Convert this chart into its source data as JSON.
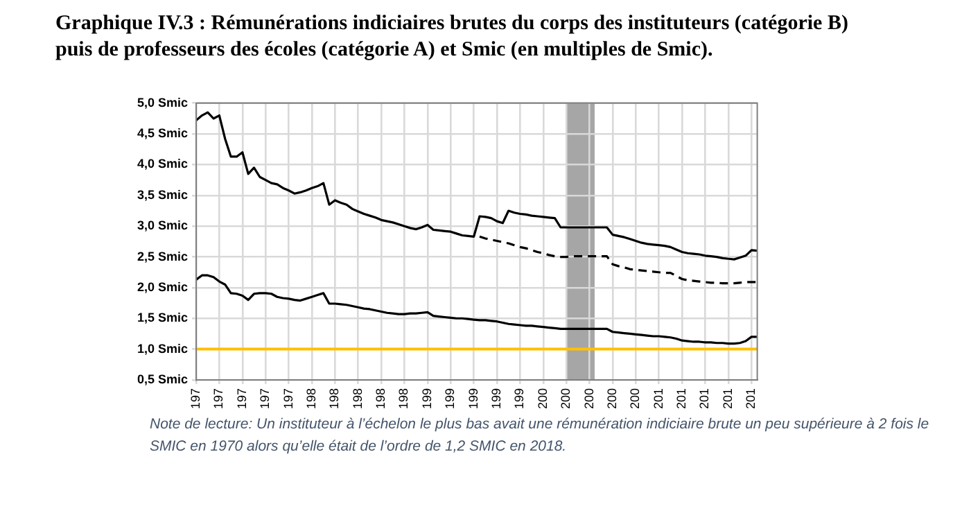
{
  "chart_data": {
    "type": "line",
    "title": "Graphique IV.3 : Rémunérations indiciaires brutes du corps des instituteurs (catégorie B) puis de professeurs des écoles (catégorie A) et Smic (en multiples de Smic).",
    "annotations": [
      "Note de lecture: Un instituteur à l’échelon le plus bas  avait une rémunération indiciaire brute un peu supérieure à 2 fois le SMIC en 1970 alors qu’elle était de l’ordre de 1,2 SMIC en 2018."
    ],
    "categories": [
      "197",
      null,
      null,
      null,
      "197",
      null,
      null,
      null,
      "197",
      null,
      null,
      null,
      "197",
      null,
      null,
      null,
      "197",
      null,
      null,
      null,
      "198",
      null,
      null,
      null,
      "198",
      null,
      null,
      null,
      "198",
      null,
      null,
      null,
      "198",
      null,
      null,
      null,
      "198",
      null,
      null,
      null,
      "199",
      null,
      null,
      null,
      "199",
      null,
      null,
      null,
      "199",
      null,
      null,
      null,
      "199",
      null,
      null,
      null,
      "199",
      null,
      null,
      null,
      "200",
      null,
      null,
      null,
      "200",
      null,
      null,
      null,
      "200",
      null,
      null,
      null,
      "200",
      null,
      null,
      null,
      "200",
      null,
      null,
      null,
      "201",
      null,
      null,
      null,
      "201",
      null,
      null,
      null,
      "201",
      null,
      null,
      null,
      "201",
      null,
      null,
      null,
      "201",
      null
    ],
    "ylim": [
      0.5,
      5.0
    ],
    "yticks": [
      {
        "value": 0.5,
        "label": "0,5 Smic"
      },
      {
        "value": 1.0,
        "label": "1,0 Smic"
      },
      {
        "value": 1.5,
        "label": "1,5 Smic"
      },
      {
        "value": 2.0,
        "label": "2,0 Smic"
      },
      {
        "value": 2.5,
        "label": "2,5 Smic"
      },
      {
        "value": 3.0,
        "label": "3,0 Smic"
      },
      {
        "value": 3.5,
        "label": "3,5 Smic"
      },
      {
        "value": 4.0,
        "label": "4,0 Smic"
      },
      {
        "value": 4.5,
        "label": "4,5 Smic"
      },
      {
        "value": 5.0,
        "label": "5,0 Smic"
      }
    ],
    "grid": true,
    "marker": "none",
    "series": [
      {
        "color": "#000000",
        "line_style": "solid",
        "values": [
          4.72,
          4.8,
          4.85,
          4.75,
          4.8,
          4.42,
          4.13,
          4.13,
          4.2,
          3.85,
          3.95,
          3.8,
          3.75,
          3.7,
          3.68,
          3.62,
          3.58,
          3.53,
          3.55,
          3.58,
          3.62,
          3.65,
          3.7,
          3.35,
          3.42,
          3.38,
          3.35,
          3.28,
          3.24,
          3.2,
          3.17,
          3.14,
          3.1,
          3.08,
          3.06,
          3.03,
          3.0,
          2.97,
          2.95,
          2.98,
          3.02,
          2.94,
          2.93,
          2.92,
          2.91,
          2.88,
          2.85,
          2.84,
          2.83,
          3.16,
          3.15,
          3.13,
          3.08,
          3.05,
          3.25,
          3.22,
          3.2,
          3.19,
          3.17,
          3.16,
          3.15,
          3.14,
          3.13,
          2.98,
          2.98,
          2.98,
          2.98,
          2.98,
          2.98,
          2.98,
          2.98,
          2.98,
          2.86,
          2.84,
          2.82,
          2.79,
          2.76,
          2.73,
          2.71,
          2.7,
          2.69,
          2.68,
          2.66,
          2.62,
          2.58,
          2.56,
          2.55,
          2.54,
          2.52,
          2.51,
          2.5,
          2.48,
          2.47,
          2.46,
          2.49,
          2.52,
          2.61,
          2.6
        ]
      },
      {
        "color": "#000000",
        "line_style": "dashed",
        "values": [
          null,
          null,
          null,
          null,
          null,
          null,
          null,
          null,
          null,
          null,
          null,
          null,
          null,
          null,
          null,
          null,
          null,
          null,
          null,
          null,
          null,
          null,
          null,
          null,
          null,
          null,
          null,
          null,
          null,
          null,
          null,
          null,
          null,
          null,
          null,
          null,
          null,
          null,
          null,
          null,
          null,
          null,
          null,
          null,
          null,
          null,
          null,
          null,
          null,
          2.83,
          2.8,
          2.78,
          2.76,
          2.74,
          2.72,
          2.69,
          2.66,
          2.64,
          2.61,
          2.58,
          2.56,
          2.53,
          2.51,
          2.5,
          2.5,
          2.51,
          2.51,
          2.51,
          2.51,
          2.51,
          2.51,
          2.51,
          2.38,
          2.35,
          2.33,
          2.3,
          2.29,
          2.28,
          2.27,
          2.26,
          2.25,
          2.24,
          2.24,
          2.19,
          2.14,
          2.12,
          2.11,
          2.1,
          2.09,
          2.08,
          2.08,
          2.07,
          2.07,
          2.07,
          2.08,
          2.09,
          2.09,
          2.09
        ]
      },
      {
        "color": "#000000",
        "line_style": "solid",
        "values": [
          2.13,
          2.2,
          2.2,
          2.17,
          2.1,
          2.05,
          1.91,
          1.9,
          1.87,
          1.8,
          1.9,
          1.91,
          1.91,
          1.9,
          1.85,
          1.83,
          1.82,
          1.8,
          1.79,
          1.82,
          1.85,
          1.88,
          1.91,
          1.74,
          1.74,
          1.73,
          1.72,
          1.7,
          1.68,
          1.66,
          1.65,
          1.63,
          1.61,
          1.59,
          1.58,
          1.57,
          1.57,
          1.58,
          1.58,
          1.59,
          1.6,
          1.54,
          1.53,
          1.52,
          1.51,
          1.5,
          1.5,
          1.49,
          1.48,
          1.47,
          1.47,
          1.46,
          1.45,
          1.43,
          1.41,
          1.4,
          1.39,
          1.38,
          1.38,
          1.37,
          1.36,
          1.35,
          1.34,
          1.33,
          1.33,
          1.33,
          1.33,
          1.33,
          1.33,
          1.33,
          1.33,
          1.33,
          1.28,
          1.27,
          1.26,
          1.25,
          1.24,
          1.23,
          1.22,
          1.21,
          1.21,
          1.2,
          1.19,
          1.17,
          1.14,
          1.13,
          1.12,
          1.12,
          1.11,
          1.11,
          1.1,
          1.1,
          1.09,
          1.09,
          1.1,
          1.13,
          1.2,
          1.2
        ]
      }
    ],
    "ref_lines": [
      {
        "axis": "y",
        "value": 1.0,
        "color": "#ffc000"
      }
    ]
  }
}
